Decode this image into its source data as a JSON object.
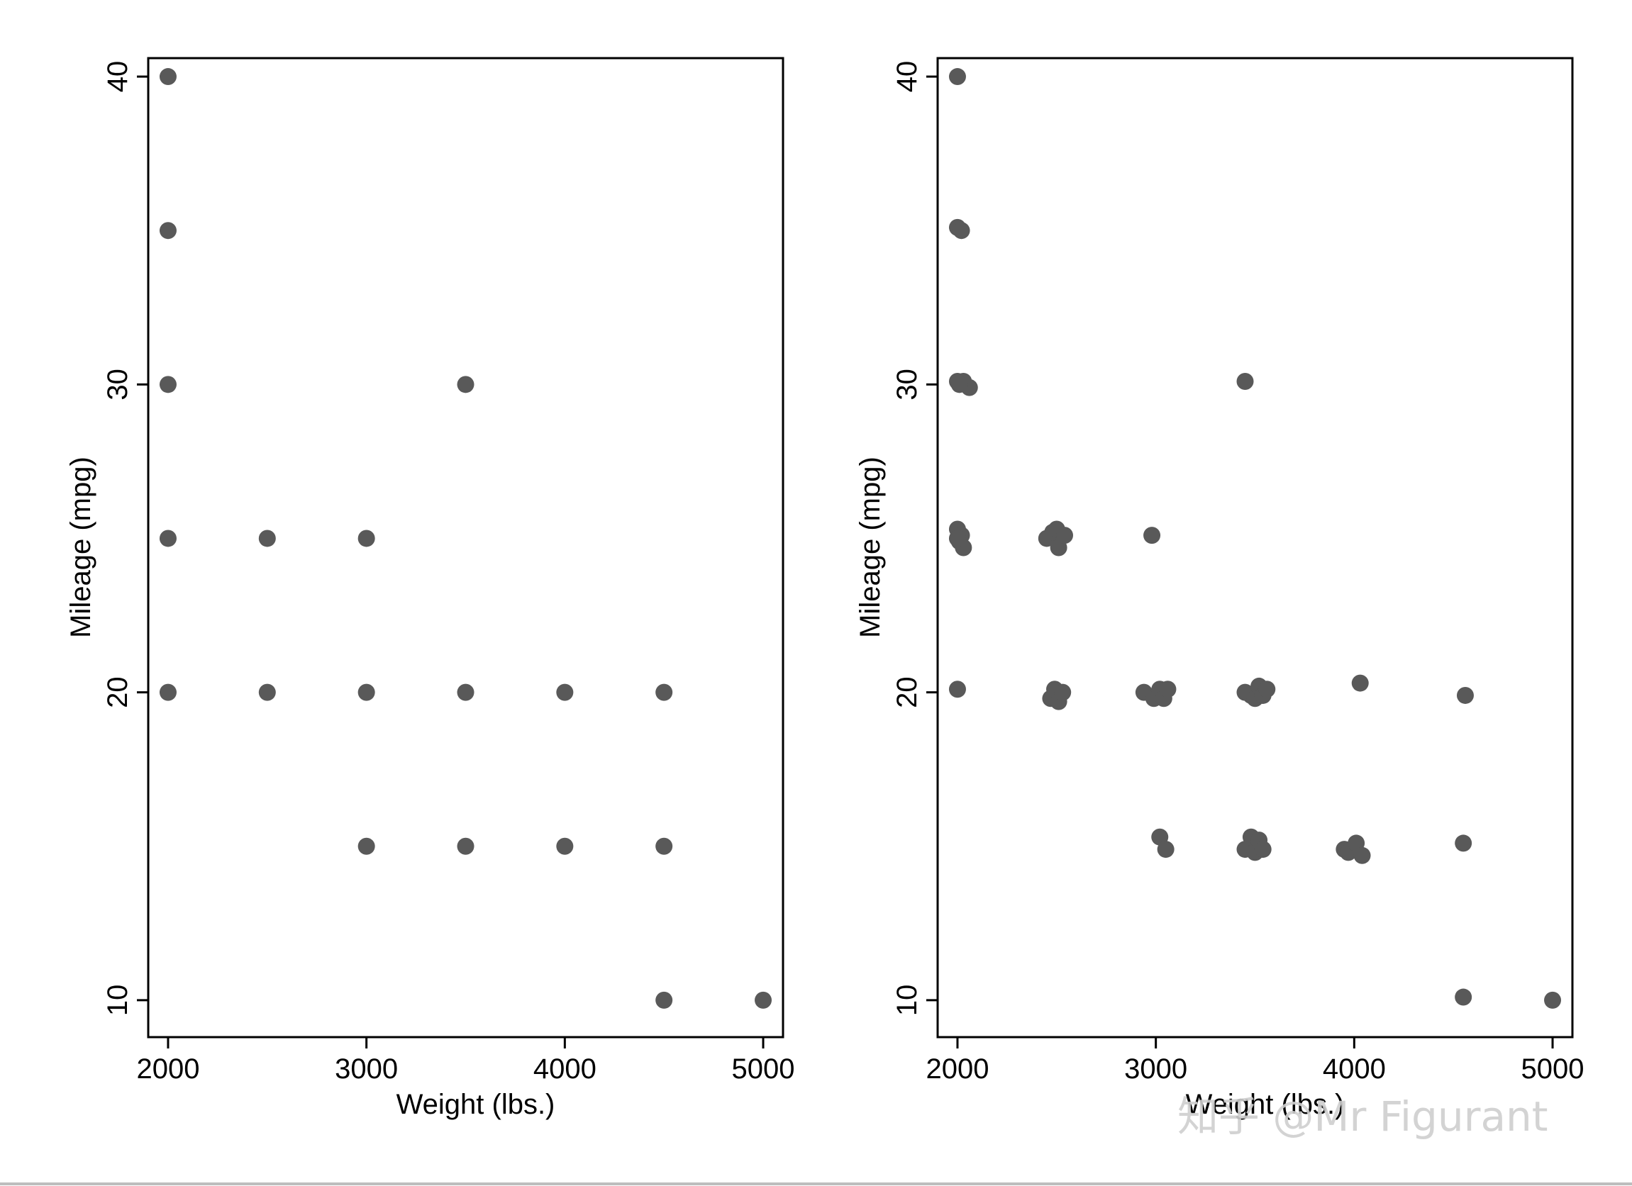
{
  "chart_data": [
    {
      "type": "scatter",
      "xlabel": "Weight (lbs.)",
      "ylabel": "Mileage (mpg)",
      "xlim": [
        1900,
        5100
      ],
      "ylim": [
        8.8,
        40.6
      ],
      "xticks": [
        2000,
        3000,
        4000,
        5000
      ],
      "yticks": [
        10,
        20,
        30,
        40
      ],
      "grid": false,
      "marker_color": "#595959",
      "points": [
        [
          2000,
          40
        ],
        [
          2000,
          35
        ],
        [
          2000,
          30
        ],
        [
          2000,
          25
        ],
        [
          2000,
          20
        ],
        [
          2500,
          25
        ],
        [
          2500,
          20
        ],
        [
          3000,
          25
        ],
        [
          3000,
          20
        ],
        [
          3000,
          15
        ],
        [
          3500,
          30
        ],
        [
          3500,
          20
        ],
        [
          3500,
          15
        ],
        [
          4000,
          20
        ],
        [
          4000,
          15
        ],
        [
          4500,
          20
        ],
        [
          4500,
          15
        ],
        [
          4500,
          10
        ],
        [
          5000,
          10
        ]
      ]
    },
    {
      "type": "scatter",
      "xlabel": "Weight (lbs.)",
      "ylabel": "Mileage (mpg)",
      "xlim": [
        1900,
        5100
      ],
      "ylim": [
        8.8,
        40.6
      ],
      "xticks": [
        2000,
        3000,
        4000,
        5000
      ],
      "yticks": [
        10,
        20,
        30,
        40
      ],
      "grid": false,
      "marker_color": "#595959",
      "points": [
        [
          2000,
          40
        ],
        [
          2000,
          35.1
        ],
        [
          2020,
          35
        ],
        [
          2000,
          30.1
        ],
        [
          2030,
          30.1
        ],
        [
          2060,
          29.9
        ],
        [
          2010,
          30
        ],
        [
          2000,
          25.3
        ],
        [
          2010,
          24.9
        ],
        [
          2020,
          25.1
        ],
        [
          2030,
          24.7
        ],
        [
          2000,
          25
        ],
        [
          2000,
          20.1
        ],
        [
          2450,
          25
        ],
        [
          2480,
          25.2
        ],
        [
          2500,
          25.3
        ],
        [
          2510,
          24.7
        ],
        [
          2540,
          25.1
        ],
        [
          2470,
          19.8
        ],
        [
          2490,
          20.1
        ],
        [
          2510,
          19.7
        ],
        [
          2530,
          20
        ],
        [
          2980,
          25.1
        ],
        [
          2940,
          20
        ],
        [
          2990,
          19.8
        ],
        [
          3020,
          20.1
        ],
        [
          3040,
          19.8
        ],
        [
          3060,
          20.1
        ],
        [
          3020,
          15.3
        ],
        [
          3050,
          14.9
        ],
        [
          3450,
          30.1
        ],
        [
          3450,
          20
        ],
        [
          3480,
          19.9
        ],
        [
          3500,
          19.8
        ],
        [
          3520,
          20.2
        ],
        [
          3540,
          19.9
        ],
        [
          3560,
          20.1
        ],
        [
          3450,
          14.9
        ],
        [
          3480,
          15.3
        ],
        [
          3500,
          14.8
        ],
        [
          3520,
          15.2
        ],
        [
          3540,
          14.9
        ],
        [
          4030,
          20.3
        ],
        [
          3950,
          14.9
        ],
        [
          3970,
          14.8
        ],
        [
          4010,
          15.1
        ],
        [
          4040,
          14.7
        ],
        [
          4560,
          19.9
        ],
        [
          4550,
          15.1
        ],
        [
          4550,
          10.1
        ],
        [
          5000,
          10
        ]
      ]
    }
  ],
  "watermark": "知乎 @Mr Figurant"
}
